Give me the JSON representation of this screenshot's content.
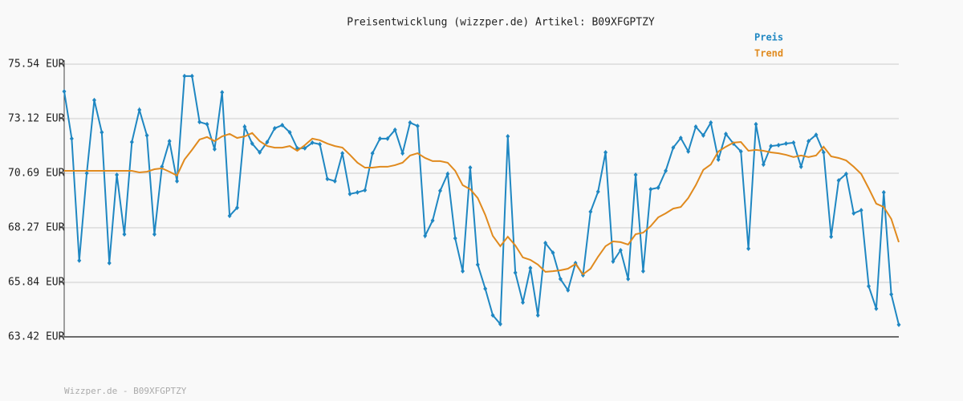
{
  "chart_data": {
    "type": "line",
    "title": "Preisentwicklung (wizzper.de) Artikel: B09XFGPTZY",
    "footer": "Wizzper.de - B09XFGPTZY",
    "ylim": [
      63.42,
      75.54
    ],
    "yticks": [
      {
        "value": 75.54,
        "label": "75.54 EUR"
      },
      {
        "value": 73.12,
        "label": "73.12 EUR"
      },
      {
        "value": 70.69,
        "label": "70.69 EUR"
      },
      {
        "value": 68.27,
        "label": "68.27 EUR"
      },
      {
        "value": 65.84,
        "label": "65.84 EUR"
      },
      {
        "value": 63.42,
        "label": "63.42 EUR"
      }
    ],
    "grid": true,
    "series": [
      {
        "name": "Preis",
        "color": "#1f87c2",
        "markers": true,
        "values": [
          74.33,
          72.23,
          66.81,
          70.69,
          73.94,
          72.51,
          66.7,
          70.62,
          67.98,
          72.08,
          73.51,
          72.37,
          67.98,
          70.98,
          72.12,
          70.34,
          75.01,
          75.01,
          72.97,
          72.87,
          71.76,
          74.29,
          68.8,
          69.16,
          72.76,
          72.01,
          71.62,
          72.08,
          72.69,
          72.83,
          72.51,
          71.8,
          71.8,
          72.05,
          71.98,
          70.44,
          70.34,
          71.58,
          69.77,
          69.84,
          69.94,
          71.58,
          72.23,
          72.23,
          72.62,
          71.58,
          72.94,
          72.79,
          67.91,
          68.59,
          69.91,
          70.66,
          67.8,
          66.34,
          70.94,
          66.63,
          65.56,
          64.38,
          63.99,
          72.33,
          66.27,
          64.95,
          66.48,
          64.38,
          67.59,
          67.16,
          65.99,
          65.49,
          66.7,
          66.16,
          68.98,
          69.87,
          71.62,
          66.77,
          67.27,
          65.99,
          70.62,
          66.34,
          69.98,
          70.05,
          70.8,
          71.83,
          72.26,
          71.66,
          72.76,
          72.37,
          72.94,
          71.3,
          72.44,
          72.01,
          71.66,
          67.34,
          72.87,
          71.08,
          71.9,
          71.94,
          72.01,
          72.05,
          70.98,
          72.12,
          72.4,
          71.62,
          67.87,
          70.37,
          70.66,
          68.91,
          69.05,
          65.67,
          64.67,
          69.84,
          65.31,
          63.96
        ]
      },
      {
        "name": "Trend",
        "color": "#e08a1e",
        "markers": false,
        "values": [
          70.8,
          70.8,
          70.8,
          70.8,
          70.8,
          70.8,
          70.8,
          70.8,
          70.8,
          70.8,
          70.73,
          70.76,
          70.87,
          70.91,
          70.76,
          70.59,
          71.3,
          71.73,
          72.19,
          72.3,
          72.12,
          72.33,
          72.44,
          72.26,
          72.33,
          72.48,
          72.12,
          71.9,
          71.83,
          71.83,
          71.9,
          71.69,
          71.94,
          72.23,
          72.16,
          72.01,
          71.9,
          71.83,
          71.51,
          71.16,
          70.94,
          70.94,
          70.98,
          70.98,
          71.05,
          71.16,
          71.48,
          71.58,
          71.37,
          71.23,
          71.23,
          71.16,
          70.8,
          70.16,
          69.98,
          69.59,
          68.84,
          67.91,
          67.45,
          67.87,
          67.48,
          66.95,
          66.84,
          66.63,
          66.31,
          66.34,
          66.38,
          66.45,
          66.66,
          66.2,
          66.45,
          66.98,
          67.45,
          67.66,
          67.63,
          67.52,
          67.98,
          68.05,
          68.34,
          68.73,
          68.91,
          69.12,
          69.19,
          69.59,
          70.16,
          70.84,
          71.08,
          71.66,
          71.87,
          72.05,
          72.08,
          71.69,
          71.73,
          71.69,
          71.62,
          71.58,
          71.51,
          71.41,
          71.48,
          71.41,
          71.48,
          71.87,
          71.44,
          71.37,
          71.26,
          70.98,
          70.66,
          70.02,
          69.34,
          69.19,
          68.66,
          67.63
        ]
      }
    ]
  }
}
